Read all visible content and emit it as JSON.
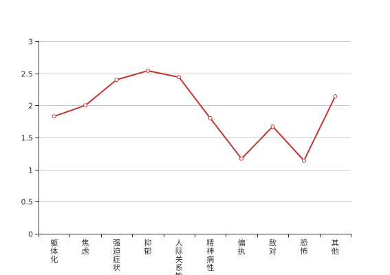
{
  "chart_data": {
    "type": "line",
    "title": "",
    "xlabel": "",
    "ylabel": "",
    "categories": [
      "躯体化",
      "焦虑",
      "强迫症状",
      "抑郁",
      "人际关系敏感",
      "精神病性",
      "偏执",
      "敌对",
      "恐怖",
      "其他"
    ],
    "series": [
      {
        "values": [
          1.83,
          2.0,
          2.4,
          2.54,
          2.44,
          1.8,
          1.17,
          1.67,
          1.14,
          2.14
        ]
      }
    ],
    "ylim": [
      0,
      3
    ],
    "yticks": [
      "0",
      "0.5",
      "1",
      "1.5",
      "2",
      "2.5",
      "3"
    ],
    "grid": true,
    "legend": "none",
    "colors": {
      "line": "#c23531",
      "grid": "#cccccc",
      "axis": "#333333"
    }
  }
}
